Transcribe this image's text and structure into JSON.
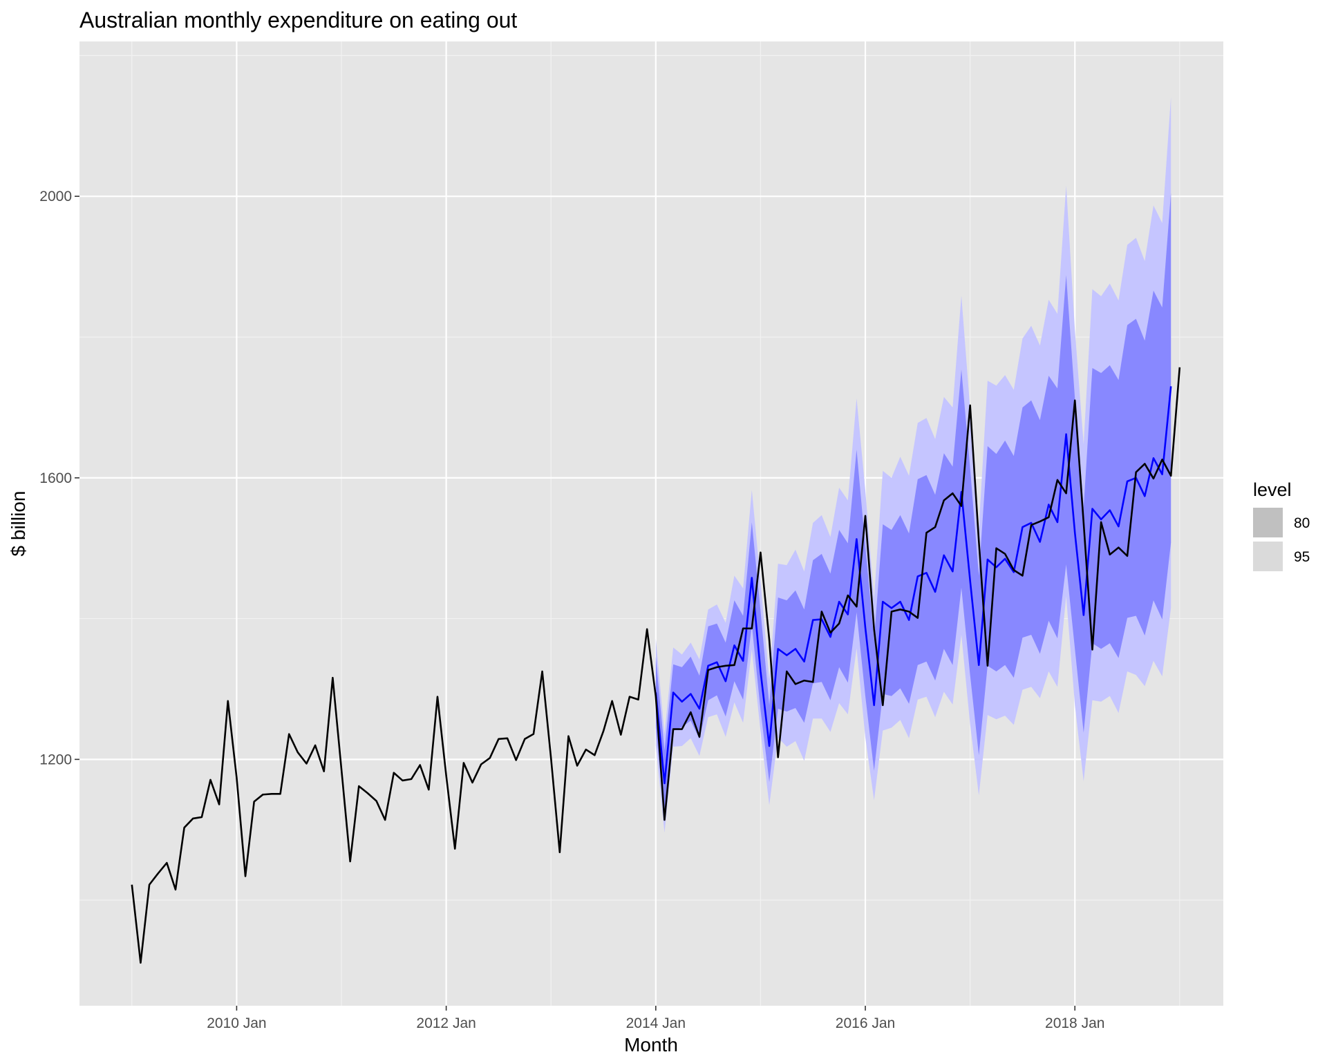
{
  "chart_data": {
    "type": "line",
    "title": "Australian monthly expenditure on eating out",
    "xlabel": "Month",
    "ylabel": "$ billion",
    "x_start": "2009 Jan",
    "x_end": "2018 Dec",
    "xlim": [
      "2008 Jul",
      "2019 Jun"
    ],
    "ylim": [
      850,
      2220
    ],
    "grid": true,
    "x_ticks": [
      "2010 Jan",
      "2012 Jan",
      "2014 Jan",
      "2016 Jan",
      "2018 Jan"
    ],
    "y_ticks": [
      1200,
      1600,
      2000
    ],
    "legend": {
      "title": "level",
      "entries": [
        "80",
        "95"
      ],
      "placement": "right"
    },
    "series": [
      {
        "name": "",
        "role": "actual",
        "color": "#000000",
        "values": [
          1022,
          911,
          1022,
          1038,
          1053,
          1015,
          1103,
          1116,
          1118,
          1171,
          1136,
          1283,
          1174,
          1034,
          1140,
          1150,
          1151,
          1151,
          1236,
          1210,
          1194,
          1220,
          1183,
          1316,
          1186,
          1055,
          1162,
          1152,
          1141,
          1114,
          1181,
          1170,
          1172,
          1192,
          1157,
          1289,
          1177,
          1073,
          1195,
          1167,
          1193,
          1202,
          1229,
          1230,
          1199,
          1229,
          1236,
          1325,
          1202,
          1068,
          1233,
          1191,
          1214,
          1206,
          1240,
          1283,
          1235,
          1289,
          1285,
          1385,
          1290,
          1114,
          1243,
          1243,
          1267,
          1232,
          1327,
          1331,
          1333,
          1334,
          1386,
          1386,
          1494,
          1370,
          1203,
          1325,
          1307,
          1312,
          1310,
          1410,
          1380,
          1393,
          1433,
          1417,
          1546,
          1385,
          1277,
          1410,
          1413,
          1410,
          1401,
          1522,
          1530,
          1568,
          1578,
          1560,
          1703,
          1510,
          1333,
          1500,
          1492,
          1469,
          1461,
          1533,
          1538,
          1544,
          1597,
          1578,
          1710,
          1536,
          1356,
          1537,
          1491,
          1501,
          1489,
          1608,
          1620,
          1599,
          1626,
          1603,
          1757
        ]
      },
      {
        "name": "",
        "role": "forecast",
        "color": "#0000ff",
        "start": "2014 Jan",
        "values": [
          1295,
          1166,
          1295,
          1282,
          1293,
          1272,
          1333,
          1338,
          1311,
          1362,
          1340,
          1458,
          1325,
          1219,
          1357,
          1348,
          1357,
          1339,
          1398,
          1399,
          1374,
          1424,
          1406,
          1513,
          1387,
          1277,
          1424,
          1415,
          1424,
          1398,
          1460,
          1465,
          1438,
          1490,
          1467,
          1580,
          1454,
          1334,
          1484,
          1473,
          1485,
          1466,
          1530,
          1536,
          1509,
          1562,
          1537,
          1662,
          1522,
          1405,
          1556,
          1541,
          1554,
          1531,
          1595,
          1600,
          1574,
          1628,
          1605,
          1730
        ]
      }
    ],
    "intervals": [
      {
        "level": "95",
        "color": "#c5c5ff",
        "lower": [
          1220,
          1096,
          1218,
          1219,
          1230,
          1205,
          1260,
          1264,
          1232,
          1281,
          1252,
          1356,
          1240,
          1135,
          1231,
          1218,
          1226,
          1198,
          1258,
          1258,
          1239,
          1280,
          1264,
          1358,
          1231,
          1142,
          1241,
          1245,
          1256,
          1230,
          1285,
          1289,
          1260,
          1296,
          1278,
          1377,
          1250,
          1149,
          1263,
          1257,
          1262,
          1249,
          1299,
          1303,
          1287,
          1325,
          1303,
          1432,
          1277,
          1169,
          1284,
          1282,
          1290,
          1266,
          1325,
          1320,
          1304,
          1340,
          1318,
          1415
        ],
        "upper": [
          1372,
          1236,
          1359,
          1349,
          1366,
          1342,
          1413,
          1420,
          1394,
          1461,
          1443,
          1583,
          1452,
          1313,
          1478,
          1476,
          1498,
          1467,
          1536,
          1547,
          1516,
          1586,
          1568,
          1713,
          1582,
          1429,
          1610,
          1600,
          1630,
          1603,
          1678,
          1685,
          1655,
          1715,
          1700,
          1859,
          1698,
          1528,
          1738,
          1731,
          1746,
          1725,
          1798,
          1816,
          1788,
          1853,
          1833,
          2015,
          1810,
          1648,
          1868,
          1858,
          1876,
          1852,
          1931,
          1941,
          1908,
          1987,
          1962,
          2141
        ]
      },
      {
        "level": "80",
        "color": "#8888ff",
        "lower": [
          1245,
          1119,
          1241,
          1246,
          1255,
          1229,
          1284,
          1291,
          1261,
          1311,
          1285,
          1391,
          1270,
          1168,
          1272,
          1268,
          1273,
          1252,
          1308,
          1310,
          1284,
          1331,
          1309,
          1409,
          1290,
          1184,
          1293,
          1290,
          1301,
          1279,
          1334,
          1339,
          1312,
          1357,
          1334,
          1444,
          1320,
          1206,
          1333,
          1325,
          1334,
          1316,
          1373,
          1377,
          1350,
          1397,
          1372,
          1477,
          1357,
          1238,
          1365,
          1357,
          1365,
          1344,
          1401,
          1404,
          1376,
          1426,
          1399,
          1508
        ],
        "upper": [
          1346,
          1213,
          1335,
          1331,
          1346,
          1319,
          1389,
          1393,
          1366,
          1426,
          1404,
          1537,
          1411,
          1277,
          1430,
          1426,
          1440,
          1413,
          1483,
          1492,
          1464,
          1526,
          1507,
          1640,
          1503,
          1370,
          1534,
          1526,
          1547,
          1521,
          1598,
          1604,
          1576,
          1635,
          1616,
          1754,
          1614,
          1461,
          1645,
          1634,
          1653,
          1631,
          1700,
          1710,
          1682,
          1745,
          1727,
          1888,
          1713,
          1558,
          1756,
          1749,
          1760,
          1739,
          1817,
          1826,
          1795,
          1866,
          1842,
          2005
        ]
      }
    ]
  }
}
